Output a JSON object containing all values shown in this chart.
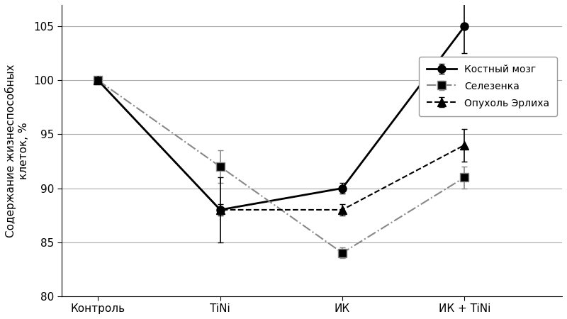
{
  "title": "",
  "ylabel": "Содержание жизнеспособных\nклеток, %",
  "xlabel": "",
  "x_labels": [
    "Контроль",
    "TiNi",
    "ИК",
    "ИК + TiNi"
  ],
  "x_positions": [
    0,
    1,
    2,
    3
  ],
  "ylim": [
    80,
    107
  ],
  "yticks": [
    80,
    85,
    90,
    95,
    100,
    105
  ],
  "series": [
    {
      "name": "Костный мозг",
      "values": [
        100,
        88,
        90,
        105
      ],
      "errors": [
        0,
        0.5,
        0.5,
        2.5
      ],
      "color": "#000000",
      "linestyle": "-",
      "marker": "o",
      "linewidth": 2.0,
      "markersize": 8,
      "markerfacecolor": "#000000"
    },
    {
      "name": "Селезенка",
      "values": [
        100,
        92,
        84,
        91
      ],
      "errors": [
        0,
        1.5,
        0.5,
        1.0
      ],
      "color": "#888888",
      "linestyle": "-.",
      "marker": "s",
      "linewidth": 1.5,
      "markersize": 8,
      "markerfacecolor": "#000000"
    },
    {
      "name": "Опухоль Эрлиха",
      "values": [
        100,
        88,
        88,
        94
      ],
      "errors": [
        0,
        3.0,
        0.5,
        1.5
      ],
      "color": "#000000",
      "linestyle": "--",
      "marker": "^",
      "linewidth": 1.5,
      "markersize": 8,
      "markerfacecolor": "#000000"
    }
  ],
  "grid_color": "#aaaaaa",
  "bg_color": "#ffffff",
  "figsize": [
    8.0,
    4.5
  ],
  "dpi": 100
}
